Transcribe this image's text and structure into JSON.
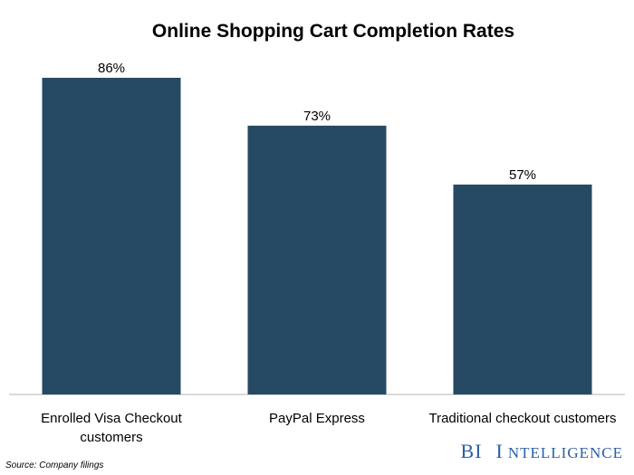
{
  "chart_data": {
    "type": "bar",
    "title": "Online Shopping Cart Completion Rates",
    "categories": [
      [
        "Enrolled Visa Checkout",
        "customers"
      ],
      [
        "PayPal Express"
      ],
      [
        "Traditional checkout customers"
      ]
    ],
    "values": [
      86,
      73,
      57
    ],
    "value_labels": [
      "86%",
      "73%",
      "57%"
    ],
    "ylim": [
      0,
      100
    ],
    "grid": false,
    "legend": "none",
    "bar_color": "#264a63"
  },
  "footer": {
    "source": "Source: Company filings",
    "brand_first": "BI",
    "brand_second_cap": "I",
    "brand_second_rest": "NTELLIGENCE",
    "brand_color": "#2b5ea8"
  }
}
